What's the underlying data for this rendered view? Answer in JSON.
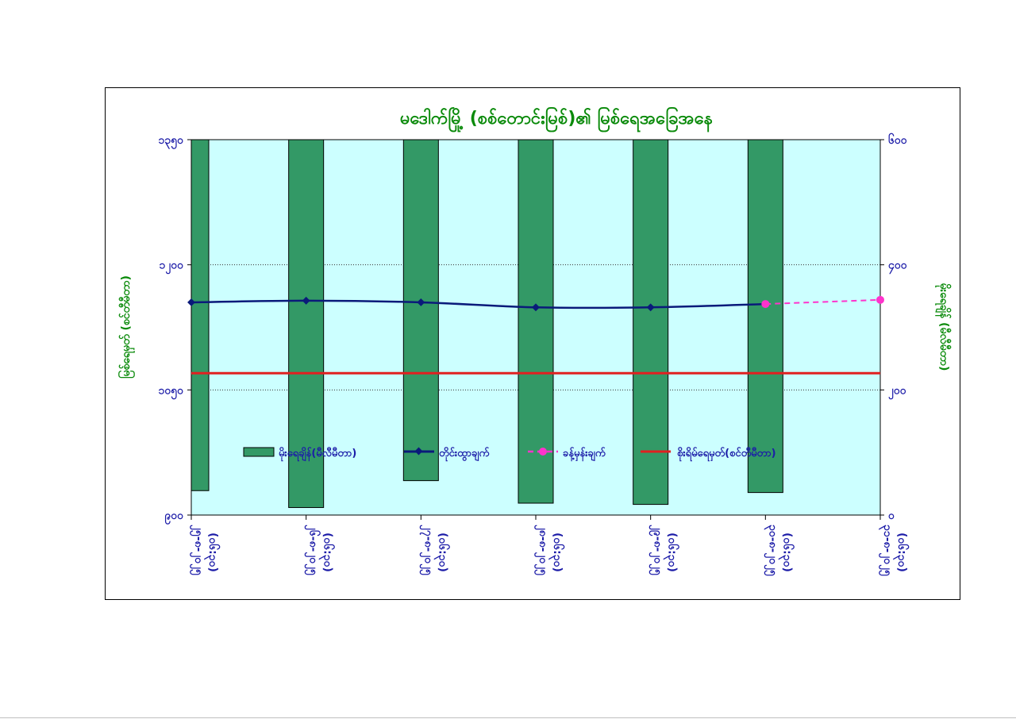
{
  "chart_data": {
    "type": "line",
    "title": "မဒေါက်မြို့ (စစ်တောင်းမြစ်)၏ မြစ်ရေအခြေအနေ",
    "ylabel_left": "မြစ်ရေမှတ် (စင်တီမီတာ)",
    "ylabel_right": "မိုးရေချိန် (မီလီမီတာ)",
    "ylim_left": [
      900,
      1350
    ],
    "ylim_right": [
      600,
      0
    ],
    "yticks_left": [
      900,
      1050,
      1200,
      1350
    ],
    "yticks_left_labels": [
      "၉၀၀",
      "၁၀၅၀",
      "၁၂၀၀",
      "၁၃၅၀"
    ],
    "yticks_right": [
      0,
      200,
      400,
      600
    ],
    "yticks_right_labels": [
      "၀",
      "၂၀၀",
      "၄၀၀",
      "၆၀၀"
    ],
    "categories": [
      [
        "၂၅-၈-၂၀၂၅",
        "(၀၆:၃၀)"
      ],
      [
        "၂၆-၈-၂၀၂၅",
        "(၀၆:၃၀)"
      ],
      [
        "၂၇-၈-၂၀၂၅",
        "(၀၆:၃၀)"
      ],
      [
        "၂၈-၈-၂၀၂၅",
        "(၀၆:၃၀)"
      ],
      [
        "၂၉-၈-၂၀၂၅",
        "(၀၆:၃၀)"
      ],
      [
        "၃၀-၈-၂၀၂၅",
        "(၀၆:၃၀)"
      ],
      [
        "၃၁-၈-၂၀၂၅",
        "(၀၆:၃၀)"
      ]
    ],
    "rainfall": {
      "name": "မိုးရေချိန်(မီလီမီတာ)",
      "axis": "right",
      "color": "#339966",
      "values": [
        39,
        12,
        55,
        19,
        17,
        36,
        null
      ]
    },
    "observed": {
      "name": "တိုင်းထွာချက်",
      "axis": "left",
      "color": "#0a1a7a",
      "values": [
        1155,
        1157,
        1155,
        1149,
        1149,
        1153,
        null
      ]
    },
    "forecast": {
      "name": "ခန့်မှန်းချက်",
      "axis": "left",
      "color": "#ff33cc",
      "values": [
        null,
        null,
        null,
        null,
        null,
        1153,
        1158
      ]
    },
    "danger_level": {
      "name": "စိုးရိမ်ရေမှတ်(စင်တီမီတာ)",
      "axis": "left",
      "color": "#e02020",
      "value": 1070
    },
    "plot_background": "#ccffff",
    "gridlines_left": [
      1050,
      1200
    ],
    "legend_position": "lower-middle"
  }
}
